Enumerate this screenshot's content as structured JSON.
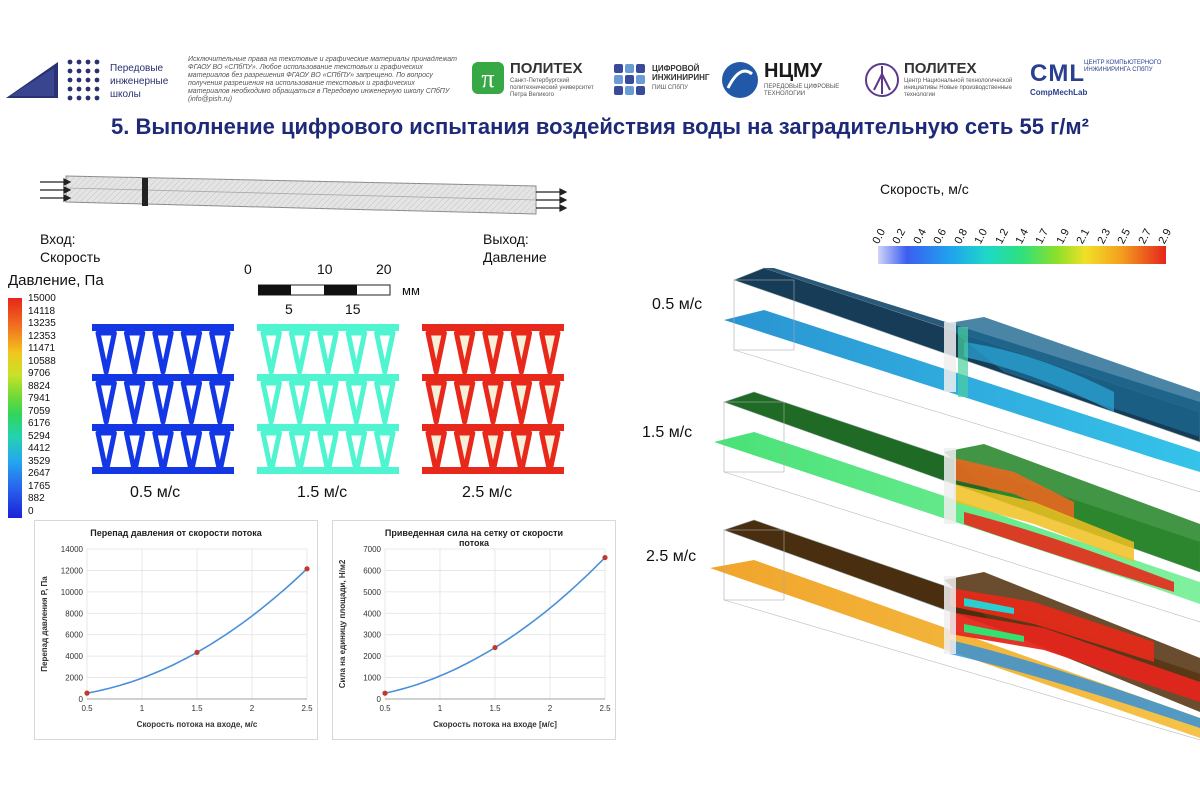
{
  "header": {
    "school_name": [
      "Передовые",
      "инженерные",
      "школы"
    ],
    "legal_text": "Исключительные права на текстовые и графические материалы принадлежат ФГАОУ ВО «СПбПУ». Любое использование текстовых и графических материалов без разрешения ФГАОУ ВО «СПбПУ» запрещено. По вопросу получения разрешения на использование текстовых и графических материалов необходимо обращаться в Передовую инженерную школу СПбПУ (info@pish.ru)",
    "logos": [
      {
        "name": "ПОЛИТЕХ",
        "sub": "Санкт-Петербургский политехнический университет Петра Великого"
      },
      {
        "name": "ЦИФРОВОЙ ИНЖИНИРИНГ",
        "sub": "ПИШ СПбПУ"
      },
      {
        "name": "НЦМУ",
        "sub": "ПЕРЕДОВЫЕ ЦИФРОВЫЕ ТЕХНОЛОГИИ"
      },
      {
        "name": "ПОЛИТЕХ",
        "sub": "Центр Национальной технологической инициативы Новые производственные технологии"
      },
      {
        "name": "CML",
        "sub": "ЦЕНТР КОМПЬЮТЕРНОГО ИНЖИНИРИНГА СПбПУ",
        "sub2": "CompMechLab"
      }
    ],
    "accent": "#2a3170"
  },
  "title": "5. Выполнение цифрового испытания воздействия воды на заградительную сеть 55 г/м²",
  "inlet": [
    "Вход:",
    "Скорость"
  ],
  "outlet": [
    "Выход:",
    "Давление"
  ],
  "scale_bar": {
    "top": [
      "0",
      "10",
      "20"
    ],
    "bottom": [
      "5",
      "15"
    ],
    "unit": "мм"
  },
  "pressure_legend": {
    "title": "Давление, Па",
    "values": [
      "15000",
      "14118",
      "13235",
      "12353",
      "11471",
      "10588",
      "9706",
      "8824",
      "7941",
      "7059",
      "6176",
      "5294",
      "4412",
      "3529",
      "2647",
      "1765",
      "882",
      "0"
    ]
  },
  "lattices": [
    {
      "label": "0.5 м/с",
      "color": "#1437e6"
    },
    {
      "label": "1.5 м/с",
      "color": "#4ff5d0"
    },
    {
      "label": "2.5 м/с",
      "color": "#e8281a"
    }
  ],
  "velocity_legend": {
    "title": "Скорость, м/с",
    "values": [
      "0.0",
      "0.2",
      "0.4",
      "0.6",
      "0.8",
      "1.0",
      "1.2",
      "1.4",
      "1.7",
      "1.9",
      "2.1",
      "2.3",
      "2.5",
      "2.7",
      "2.9"
    ]
  },
  "sim_labels": [
    "0.5 м/с",
    "1.5 м/с",
    "2.5 м/с"
  ],
  "chart_data": [
    {
      "type": "line",
      "title": "Перепад давления от скорости потока",
      "xlabel": "Скорость потока на входе, м/с",
      "ylabel": "Перепад давления P, Па",
      "xlim": [
        0.5,
        2.5
      ],
      "ylim": [
        0,
        14000
      ],
      "xticks": [
        "0.5",
        "1",
        "1.5",
        "2",
        "2.5"
      ],
      "yticks": [
        "0",
        "2000",
        "4000",
        "6000",
        "8000",
        "10000",
        "12000",
        "14000"
      ],
      "points": [
        {
          "x": 0.5,
          "y": 550
        },
        {
          "x": 1.5,
          "y": 4350
        },
        {
          "x": 2.5,
          "y": 12150
        }
      ],
      "color": "#4a90d9",
      "marker": "#c0392b"
    },
    {
      "type": "line",
      "title": "Приведенная сила на сетку от скорости потока",
      "xlabel": "Скорость потока на входе [м/с]",
      "ylabel": "Сила на единицу площади, Н/м2",
      "xlim": [
        0.5,
        2.5
      ],
      "ylim": [
        0,
        7000
      ],
      "xticks": [
        "0.5",
        "1",
        "1.5",
        "2",
        "2.5"
      ],
      "yticks": [
        "0",
        "1000",
        "2000",
        "3000",
        "4000",
        "5000",
        "6000",
        "7000"
      ],
      "points": [
        {
          "x": 0.5,
          "y": 270
        },
        {
          "x": 1.5,
          "y": 2400
        },
        {
          "x": 2.5,
          "y": 6600
        }
      ],
      "color": "#4a90d9",
      "marker": "#c0392b"
    }
  ]
}
